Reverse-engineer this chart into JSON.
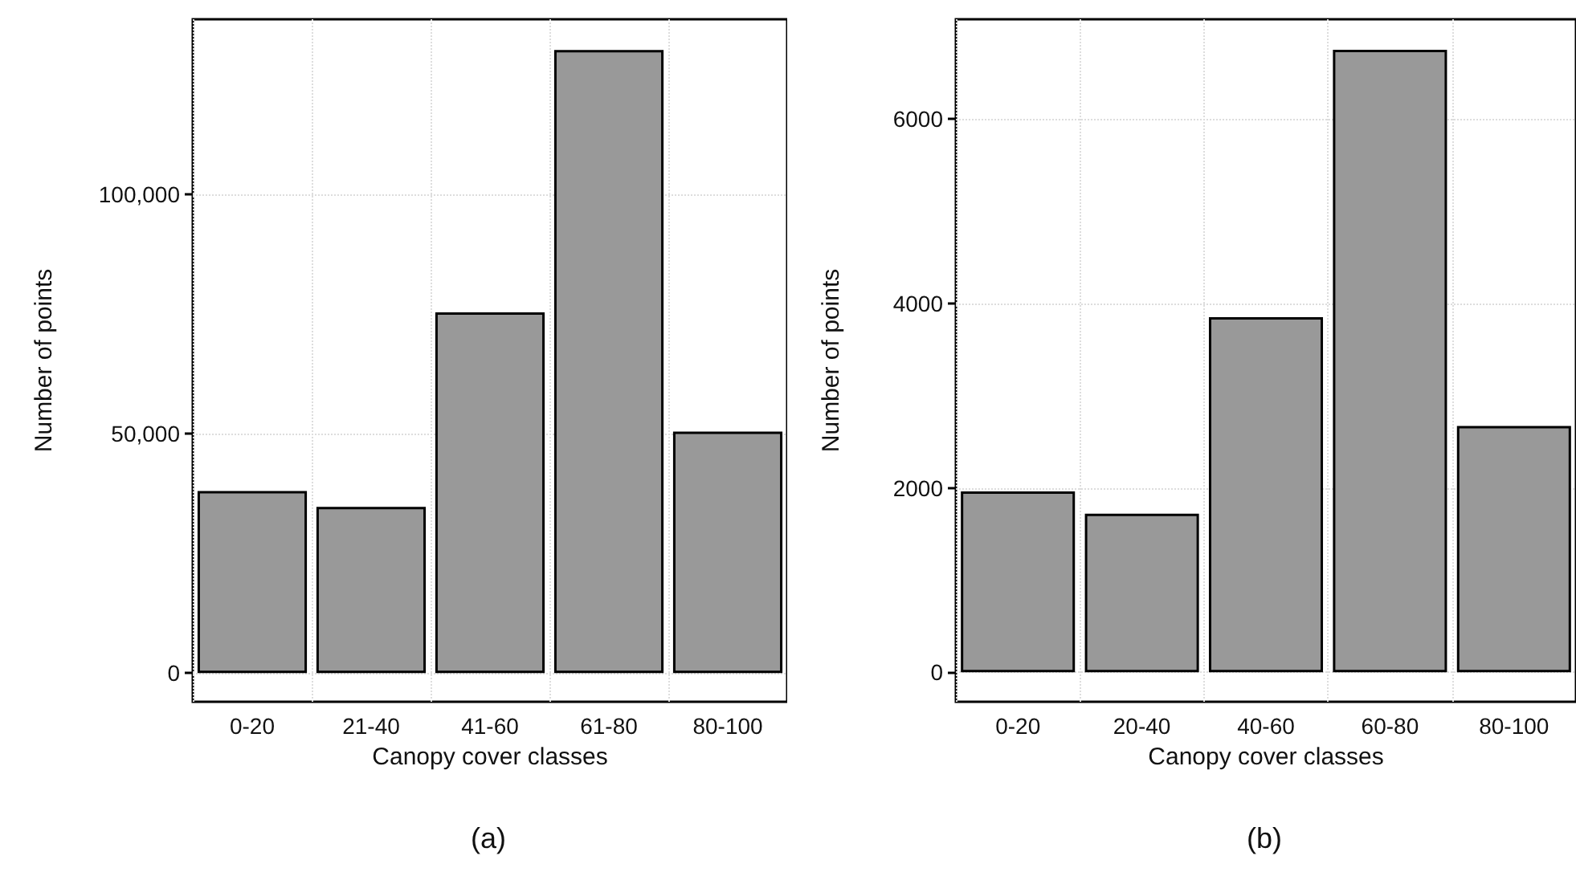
{
  "chart_data": [
    {
      "type": "bar",
      "categories": [
        "0-20",
        "21-40",
        "41-60",
        "61-80",
        "80-100"
      ],
      "values": [
        38000,
        34700,
        75300,
        130100,
        50400
      ],
      "color": "#999999",
      "xlabel": "Canopy cover classes",
      "ylabel": "Number of points",
      "ylim": [
        -6000,
        136500
      ],
      "yticks": [
        0,
        {
          "value": 50000,
          "label": "50,000"
        },
        {
          "value": 100000,
          "label": "100,000"
        }
      ],
      "grid": true,
      "annotations": [
        "(a)"
      ]
    },
    {
      "type": "bar",
      "categories": [
        "0-20",
        "20-40",
        "40-60",
        "60-80",
        "80-100"
      ],
      "values": [
        1960,
        1720,
        3850,
        6750,
        2670
      ],
      "color": "#999999",
      "xlabel": "Canopy cover classes",
      "ylabel": "Number of points",
      "ylim": [
        -320,
        7080
      ],
      "yticks": [
        0,
        2000,
        4000,
        6000
      ],
      "grid": true,
      "annotations": [
        "(b)"
      ]
    }
  ]
}
